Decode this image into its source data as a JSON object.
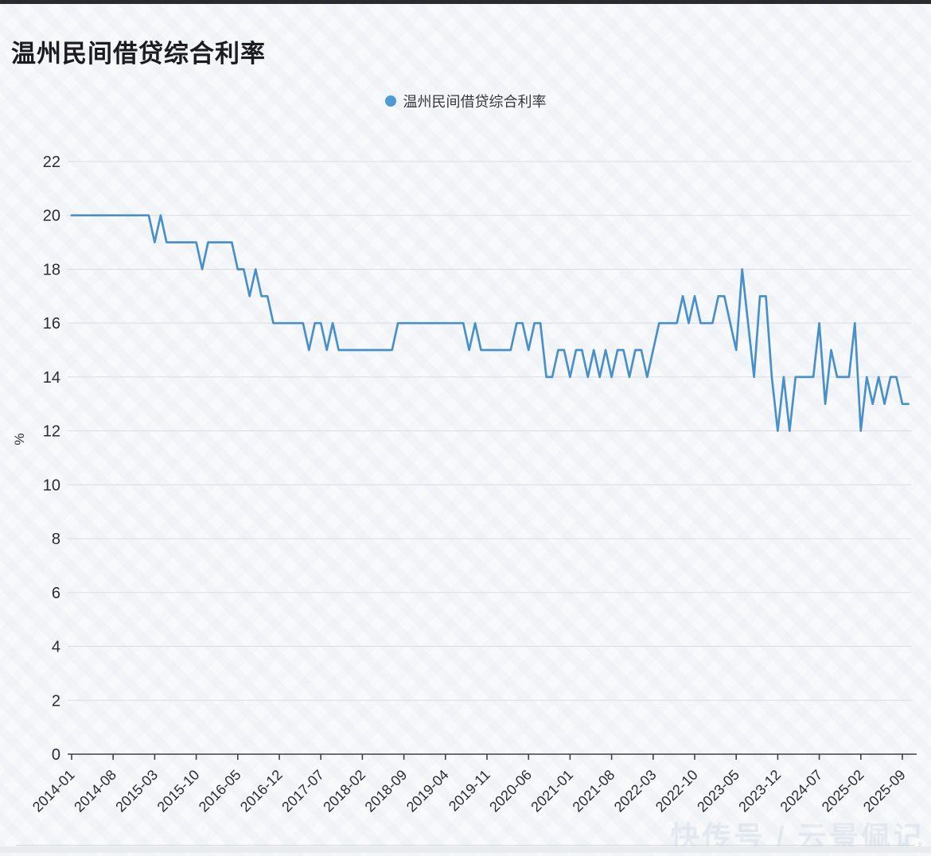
{
  "page": {
    "title": "温州民间借贷综合利率",
    "watermark": "快传号 / 云景佩记"
  },
  "legend": {
    "label": "温州民间借贷综合利率",
    "marker_color": "#4f9ad3"
  },
  "chart_data": {
    "type": "line",
    "title": "温州民间借贷综合利率",
    "series_name": "温州民间借贷综合利率",
    "xlabel": "",
    "ylabel": "%",
    "ylim": [
      0,
      22
    ],
    "grid": true,
    "legend_position": "top-center",
    "line_color": "#4a90c8",
    "grid_color": "#d9dde3",
    "axis_color": "#3f4046",
    "tick_label_color": "#2b2c33",
    "y_ticks": [
      0,
      2,
      4,
      6,
      8,
      10,
      12,
      14,
      16,
      18,
      20,
      22
    ],
    "x_ticks": [
      "2014-01",
      "2014-08",
      "2015-03",
      "2015-10",
      "2016-05",
      "2016-12",
      "2017-07",
      "2018-02",
      "2018-09",
      "2019-04",
      "2019-11",
      "2020-06",
      "2021-01",
      "2021-08",
      "2022-03",
      "2022-10",
      "2023-05",
      "2023-12",
      "2024-07",
      "2025-02",
      "2025-09"
    ],
    "x": [
      "2014-01",
      "2014-02",
      "2014-03",
      "2014-04",
      "2014-05",
      "2014-06",
      "2014-07",
      "2014-08",
      "2014-09",
      "2014-10",
      "2014-11",
      "2014-12",
      "2015-01",
      "2015-02",
      "2015-03",
      "2015-04",
      "2015-05",
      "2015-06",
      "2015-07",
      "2015-08",
      "2015-09",
      "2015-10",
      "2015-11",
      "2015-12",
      "2016-01",
      "2016-02",
      "2016-03",
      "2016-04",
      "2016-05",
      "2016-06",
      "2016-07",
      "2016-08",
      "2016-09",
      "2016-10",
      "2016-11",
      "2016-12",
      "2017-01",
      "2017-02",
      "2017-03",
      "2017-04",
      "2017-05",
      "2017-06",
      "2017-07",
      "2017-08",
      "2017-09",
      "2017-10",
      "2017-11",
      "2017-12",
      "2018-01",
      "2018-02",
      "2018-03",
      "2018-04",
      "2018-05",
      "2018-06",
      "2018-07",
      "2018-08",
      "2018-09",
      "2018-10",
      "2018-11",
      "2018-12",
      "2019-01",
      "2019-02",
      "2019-03",
      "2019-04",
      "2019-05",
      "2019-06",
      "2019-07",
      "2019-08",
      "2019-09",
      "2019-10",
      "2019-11",
      "2019-12",
      "2020-01",
      "2020-02",
      "2020-03",
      "2020-04",
      "2020-05",
      "2020-06",
      "2020-07",
      "2020-08",
      "2020-09",
      "2020-10",
      "2020-11",
      "2020-12",
      "2021-01",
      "2021-02",
      "2021-03",
      "2021-04",
      "2021-05",
      "2021-06",
      "2021-07",
      "2021-08",
      "2021-09",
      "2021-10",
      "2021-11",
      "2021-12",
      "2022-01",
      "2022-02",
      "2022-03",
      "2022-04",
      "2022-05",
      "2022-06",
      "2022-07",
      "2022-08",
      "2022-09",
      "2022-10",
      "2022-11",
      "2022-12",
      "2023-01",
      "2023-02",
      "2023-03",
      "2023-04",
      "2023-05",
      "2023-06",
      "2023-07",
      "2023-08",
      "2023-09",
      "2023-10",
      "2023-11",
      "2023-12",
      "2024-01",
      "2024-02",
      "2024-03",
      "2024-04",
      "2024-05",
      "2024-06",
      "2024-07",
      "2024-08",
      "2024-09",
      "2024-10",
      "2024-11",
      "2024-12",
      "2025-01",
      "2025-02",
      "2025-03",
      "2025-04",
      "2025-05",
      "2025-06",
      "2025-07",
      "2025-08",
      "2025-09",
      "2025-10"
    ],
    "values": [
      20,
      20,
      20,
      20,
      20,
      20,
      20,
      20,
      20,
      20,
      20,
      20,
      20,
      20,
      19,
      20,
      19,
      19,
      19,
      19,
      19,
      19,
      18,
      19,
      19,
      19,
      19,
      19,
      18,
      18,
      17,
      18,
      17,
      17,
      16,
      16,
      16,
      16,
      16,
      16,
      15,
      16,
      16,
      15,
      16,
      15,
      15,
      15,
      15,
      15,
      15,
      15,
      15,
      15,
      15,
      16,
      16,
      16,
      16,
      16,
      16,
      16,
      16,
      16,
      16,
      16,
      16,
      15,
      16,
      15,
      15,
      15,
      15,
      15,
      15,
      16,
      16,
      15,
      16,
      16,
      14,
      14,
      15,
      15,
      14,
      15,
      15,
      14,
      15,
      14,
      15,
      14,
      15,
      15,
      14,
      15,
      15,
      14,
      15,
      16,
      16,
      16,
      16,
      17,
      16,
      17,
      16,
      16,
      16,
      17,
      17,
      16,
      15,
      18,
      16,
      14,
      17,
      17,
      14,
      12,
      14,
      12,
      14,
      14,
      14,
      14,
      16,
      13,
      15,
      14,
      14,
      14,
      16,
      12,
      14,
      13,
      14,
      13,
      14,
      14,
      13,
      13
    ]
  }
}
